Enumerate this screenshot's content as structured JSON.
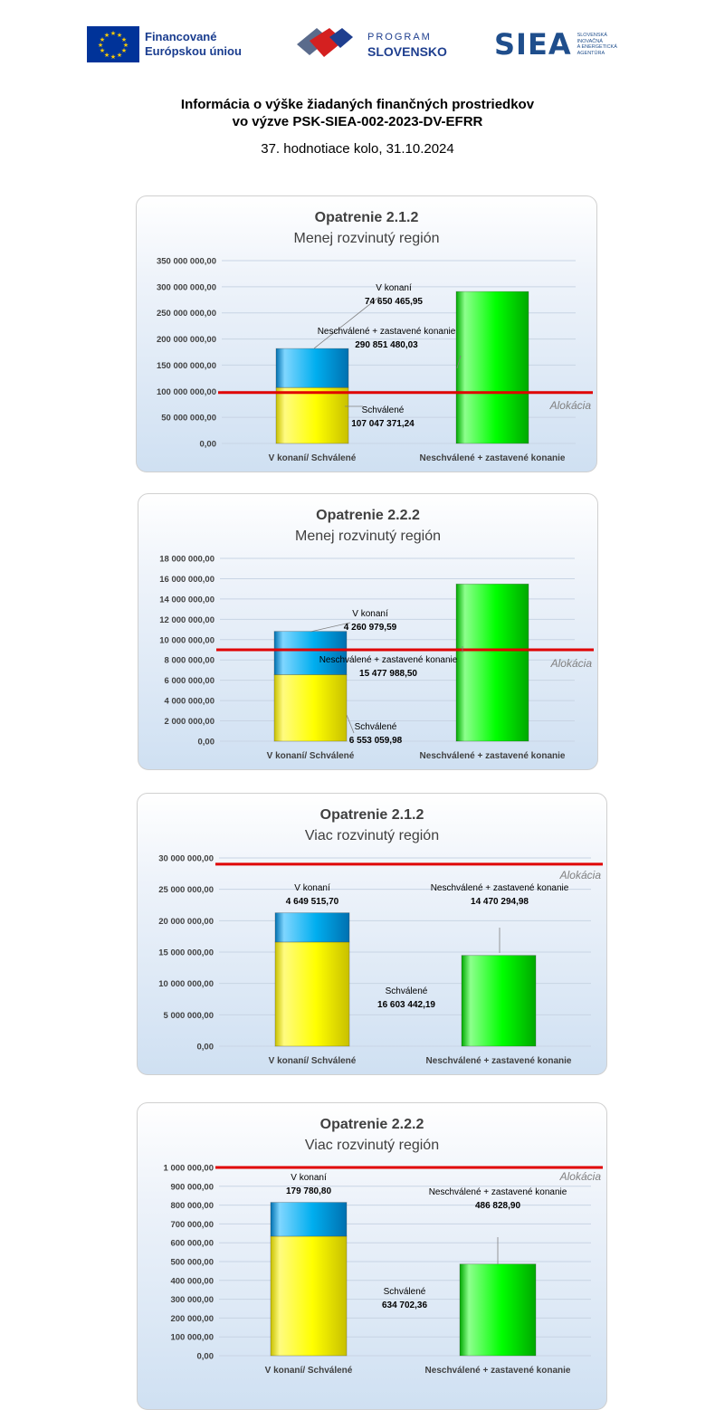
{
  "logos": {
    "eu": {
      "line1": "Financované",
      "line2": "Európskou úniou"
    },
    "program": {
      "line1": "PROGRAM",
      "line2": "SLOVENSKO"
    },
    "siea": {
      "word": "SIEA",
      "small1": "SLOVENSKÁ",
      "small2": "INOVAČNÁ",
      "small3": "A ENERGETICKÁ",
      "small4": "AGENTÚRA"
    }
  },
  "header": {
    "title_line1": "Informácia o výške žiadaných finančných prostriedkov",
    "title_line2": "vo výzve PSK-SIEA-002-2023-DV-EFRR",
    "subtitle": "37. hodnotiace kolo, 31.10.2024"
  },
  "colors": {
    "approved": "#ffff00",
    "in_progress": "#00aeef",
    "rejected": "#00ff00",
    "allocation_line": "#e00000"
  },
  "chart_data": [
    {
      "type": "bar",
      "title": "Opatrenie 2.1.2",
      "subtitle": "Menej rozvinutý región",
      "categories": [
        "V konaní/ Schválené",
        "Neschválené + zastavené konanie"
      ],
      "series": [
        {
          "name": "Schválené",
          "values": [
            107047371.24,
            0
          ],
          "label": "107 047 371,24"
        },
        {
          "name": "V konaní",
          "values": [
            74650465.95,
            0
          ],
          "label": "74 650 465,95"
        },
        {
          "name": "Neschválené + zastavené konanie",
          "values": [
            0,
            290851480.03
          ],
          "label": "290 851 480,03"
        }
      ],
      "ylim": [
        0,
        350000000
      ],
      "yticks": [
        "0,00",
        "50 000 000,00",
        "100 000 000,00",
        "150 000 000,00",
        "200 000 000,00",
        "250 000 000,00",
        "300 000 000,00",
        "350 000 000,00"
      ],
      "allocation": {
        "label": "Alokácia",
        "value": 97500000
      }
    },
    {
      "type": "bar",
      "title": "Opatrenie 2.2.2",
      "subtitle": "Menej rozvinutý región",
      "categories": [
        "V konaní/ Schválené",
        "Neschválené + zastavené konanie"
      ],
      "series": [
        {
          "name": "Schválené",
          "values": [
            6553059.98,
            0
          ],
          "label": "6 553 059,98"
        },
        {
          "name": "V konaní",
          "values": [
            4260979.59,
            0
          ],
          "label": "4 260 979,59"
        },
        {
          "name": "Neschválené + zastavené konanie",
          "values": [
            0,
            15477988.5
          ],
          "label": "15 477 988,50"
        }
      ],
      "ylim": [
        0,
        18000000
      ],
      "yticks": [
        "0,00",
        "2 000 000,00",
        "4 000 000,00",
        "6 000 000,00",
        "8 000 000,00",
        "10 000 000,00",
        "12 000 000,00",
        "14 000 000,00",
        "16 000 000,00",
        "18 000 000,00"
      ],
      "allocation": {
        "label": "Alokácia",
        "value": 9000000
      }
    },
    {
      "type": "bar",
      "title": "Opatrenie 2.1.2",
      "subtitle": "Viac rozvinutý región",
      "categories": [
        "V konaní/ Schválené",
        "Neschválené + zastavené konanie"
      ],
      "series": [
        {
          "name": "Schválené",
          "values": [
            16603442.19,
            0
          ],
          "label": "16 603 442,19"
        },
        {
          "name": "V konaní",
          "values": [
            4649515.7,
            0
          ],
          "label": "4 649 515,70"
        },
        {
          "name": "Neschválené + zastavené konanie",
          "values": [
            0,
            14470294.98
          ],
          "label": "14 470 294,98"
        }
      ],
      "ylim": [
        0,
        30000000
      ],
      "yticks": [
        "0,00",
        "5 000 000,00",
        "10 000 000,00",
        "15 000 000,00",
        "20 000 000,00",
        "25 000 000,00",
        "30 000 000,00"
      ],
      "allocation": {
        "label": "Alokácia",
        "value": 29000000
      }
    },
    {
      "type": "bar",
      "title": "Opatrenie 2.2.2",
      "subtitle": "Viac rozvinutý región",
      "categories": [
        "V konaní/ Schválené",
        "Neschválené + zastavené konanie"
      ],
      "series": [
        {
          "name": "Schválené",
          "values": [
            634702.36,
            0
          ],
          "label": "634 702,36"
        },
        {
          "name": "V konaní",
          "values": [
            179780.8,
            0
          ],
          "label": "179 780,80"
        },
        {
          "name": "Neschválené + zastavené konanie",
          "values": [
            0,
            486828.9
          ],
          "label": "486 828,90"
        }
      ],
      "ylim": [
        0,
        1000000
      ],
      "yticks": [
        "0,00",
        "100 000,00",
        "200 000,00",
        "300 000,00",
        "400 000,00",
        "500 000,00",
        "600 000,00",
        "700 000,00",
        "800 000,00",
        "900 000,00",
        "1 000 000,00"
      ],
      "allocation": {
        "label": "Alokácia",
        "value": 1000000
      }
    }
  ]
}
